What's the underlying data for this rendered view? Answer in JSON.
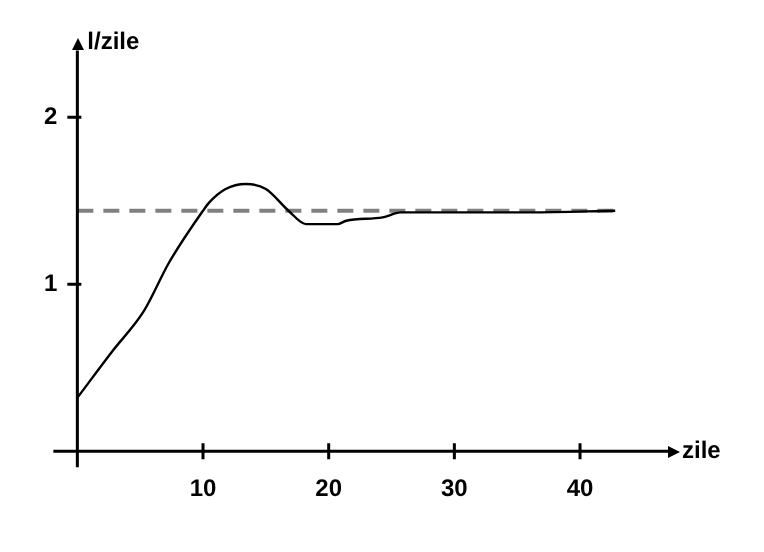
{
  "chart_data": {
    "type": "line",
    "xlabel": "zile",
    "ylabel": "l/zile",
    "x": [
      0,
      2.8,
      5.3,
      7.3,
      10,
      10.5,
      11.8,
      13.4,
      15,
      16.8,
      18.2,
      20.7,
      21.4,
      24.3,
      25.7,
      30,
      36,
      42.8
    ],
    "series": [
      {
        "color": "#000000",
        "values": [
          0.32,
          0.6,
          0.84,
          1.13,
          1.44,
          1.49,
          1.57,
          1.6,
          1.57,
          1.44,
          1.36,
          1.36,
          1.38,
          1.4,
          1.43,
          1.43,
          1.43,
          1.44
        ]
      }
    ],
    "xlim": [
      0,
      47
    ],
    "xticks": [
      10,
      20,
      30,
      40
    ],
    "ylim": [
      0,
      2.4
    ],
    "yticks": [
      1,
      2
    ],
    "ref_lines": [
      {
        "axis": "y",
        "value": 1.44,
        "color": "#808080",
        "line_style": "dashed"
      }
    ],
    "grid": false,
    "legend": false,
    "marker": "none",
    "line_style": "solid"
  }
}
